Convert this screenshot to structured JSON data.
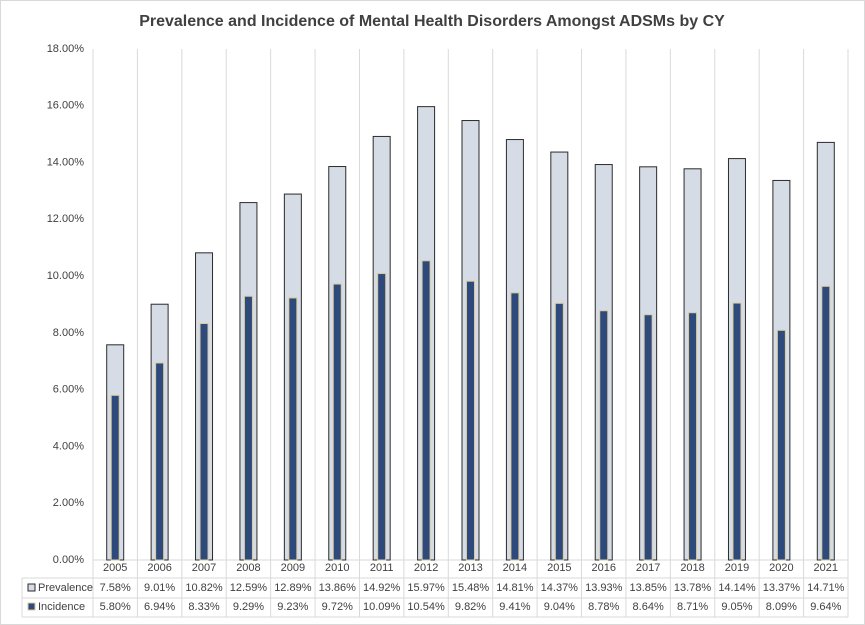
{
  "chart_data": {
    "type": "bar",
    "title": "Prevalence and Incidence of Mental Health Disorders Amongst ADSMs by CY",
    "categories": [
      "2005",
      "2006",
      "2007",
      "2008",
      "2009",
      "2010",
      "2011",
      "2012",
      "2013",
      "2014",
      "2015",
      "2016",
      "2017",
      "2018",
      "2019",
      "2020",
      "2021"
    ],
    "series": [
      {
        "name": "Prevalence",
        "color": "#d6dce5",
        "stroke": "#2b2b2b",
        "values": [
          7.58,
          9.01,
          10.82,
          12.59,
          12.89,
          13.86,
          14.92,
          15.97,
          15.48,
          14.81,
          14.37,
          13.93,
          13.85,
          13.78,
          14.14,
          13.37,
          14.71
        ],
        "value_labels": [
          "7.58%",
          "9.01%",
          "10.82%",
          "12.59%",
          "12.89%",
          "13.86%",
          "14.92%",
          "15.97%",
          "15.48%",
          "14.81%",
          "14.37%",
          "13.93%",
          "13.85%",
          "13.78%",
          "14.14%",
          "13.37%",
          "14.71%"
        ]
      },
      {
        "name": "Incidence",
        "color": "#2e4a7d",
        "stroke": "#d9c99a",
        "values": [
          5.8,
          6.94,
          8.33,
          9.29,
          9.23,
          9.72,
          10.09,
          10.54,
          9.82,
          9.41,
          9.04,
          8.78,
          8.64,
          8.71,
          9.05,
          8.09,
          9.64
        ],
        "value_labels": [
          "5.80%",
          "6.94%",
          "8.33%",
          "9.29%",
          "9.23%",
          "9.72%",
          "10.09%",
          "10.54%",
          "9.82%",
          "9.41%",
          "9.04%",
          "8.78%",
          "8.64%",
          "8.71%",
          "9.05%",
          "8.09%",
          "9.64%"
        ]
      }
    ],
    "ylim": [
      0,
      18
    ],
    "yticks": [
      {
        "value": 0,
        "label": "0.00%"
      },
      {
        "value": 2,
        "label": "2.00%"
      },
      {
        "value": 4,
        "label": "4.00%"
      },
      {
        "value": 6,
        "label": "6.00%"
      },
      {
        "value": 8,
        "label": "8.00%"
      },
      {
        "value": 10,
        "label": "10.00%"
      },
      {
        "value": 12,
        "label": "12.00%"
      },
      {
        "value": 14,
        "label": "14.00%"
      },
      {
        "value": 16,
        "label": "16.00%"
      },
      {
        "value": 18,
        "label": "18.00%"
      }
    ],
    "grid": false
  }
}
